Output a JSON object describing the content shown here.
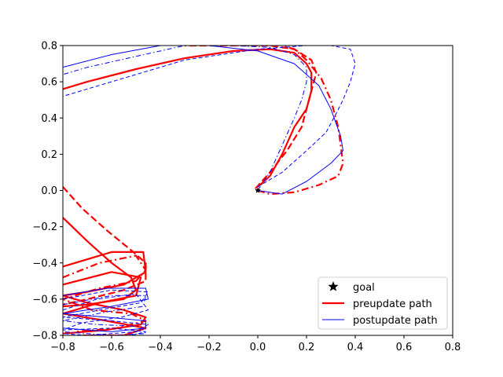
{
  "chart_data": {
    "type": "line",
    "title": "",
    "xlabel": "",
    "ylabel": "",
    "xlim": [
      -0.8,
      0.8
    ],
    "ylim": [
      -0.8,
      0.8
    ],
    "xticks": [
      -0.8,
      -0.6,
      -0.4,
      -0.2,
      0.0,
      0.2,
      0.4,
      0.6,
      0.8
    ],
    "yticks": [
      -0.8,
      -0.6,
      -0.4,
      -0.2,
      0.0,
      0.2,
      0.4,
      0.6,
      0.8
    ],
    "xtick_labels": [
      "−0.8",
      "−0.6",
      "−0.4",
      "−0.2",
      "0.0",
      "0.2",
      "0.4",
      "0.6",
      "0.8"
    ],
    "ytick_labels": [
      "−0.8",
      "−0.6",
      "−0.4",
      "−0.2",
      "0.0",
      "0.2",
      "0.4",
      "0.6",
      "0.8"
    ],
    "grid": false,
    "legend": {
      "position": "lower right",
      "entries": [
        {
          "label": "goal",
          "marker": "star",
          "color": "#000000"
        },
        {
          "label": "preupdate path",
          "style": "solid",
          "color": "#ff0000",
          "thick": true
        },
        {
          "label": "postupdate path",
          "style": "solid",
          "color": "#0000ff",
          "thick": false
        }
      ]
    },
    "goal": {
      "x": 0.0,
      "y": 0.0
    },
    "series": [
      {
        "group": "preupdate path",
        "color": "#ff0000",
        "style": "solid",
        "thick": true,
        "x": [
          0.0,
          0.05,
          0.1,
          0.15,
          0.2,
          0.22,
          0.22,
          0.2,
          0.15,
          0.05,
          -0.1,
          -0.3,
          -0.5,
          -0.7,
          -0.8
        ],
        "y": [
          0.02,
          0.08,
          0.2,
          0.35,
          0.45,
          0.55,
          0.65,
          0.7,
          0.76,
          0.78,
          0.77,
          0.73,
          0.67,
          0.6,
          0.56
        ]
      },
      {
        "group": "preupdate path",
        "color": "#ff0000",
        "style": "dashed",
        "thick": true,
        "x": [
          -0.01,
          0.05,
          0.12,
          0.18,
          0.2,
          0.22,
          0.24,
          0.22,
          0.15,
          0.05,
          -0.1,
          -0.3
        ],
        "y": [
          0.01,
          0.1,
          0.22,
          0.35,
          0.45,
          0.55,
          0.65,
          0.72,
          0.78,
          0.8,
          0.8,
          0.8
        ]
      },
      {
        "group": "preupdate path",
        "color": "#ff0000",
        "style": "dashdot",
        "thick": true,
        "x": [
          0.0,
          0.05,
          0.15,
          0.25,
          0.33,
          0.35,
          0.34,
          0.33,
          0.3,
          0.26,
          0.2,
          0.15,
          0.1
        ],
        "y": [
          0.0,
          -0.02,
          -0.01,
          0.03,
          0.08,
          0.15,
          0.25,
          0.35,
          0.5,
          0.62,
          0.72,
          0.78,
          0.8
        ]
      },
      {
        "group": "postupdate path",
        "color": "#0000ff",
        "style": "solid",
        "thick": false,
        "x": [
          0.0,
          0.1,
          0.2,
          0.3,
          0.35,
          0.34,
          0.3,
          0.25,
          0.15,
          0.0,
          -0.2,
          -0.4,
          -0.6,
          -0.8
        ],
        "y": [
          0.0,
          -0.02,
          0.05,
          0.15,
          0.22,
          0.3,
          0.45,
          0.58,
          0.7,
          0.77,
          0.8,
          0.8,
          0.75,
          0.68
        ]
      },
      {
        "group": "postupdate path",
        "color": "#0000ff",
        "style": "dashed",
        "thick": false,
        "x": [
          0.0,
          0.1,
          0.2,
          0.28,
          0.32,
          0.35,
          0.38,
          0.4,
          0.38,
          0.3,
          0.2,
          0.0,
          -0.3,
          -0.6,
          -0.8
        ],
        "y": [
          0.02,
          0.1,
          0.22,
          0.32,
          0.42,
          0.5,
          0.6,
          0.7,
          0.78,
          0.8,
          0.8,
          0.78,
          0.72,
          0.6,
          0.52
        ]
      },
      {
        "group": "postupdate path",
        "color": "#0000ff",
        "style": "dashdot",
        "thick": false,
        "x": [
          0.0,
          0.05,
          0.1,
          0.15,
          0.18,
          0.2,
          0.2,
          0.15,
          0.05,
          -0.1,
          -0.3,
          -0.5,
          -0.7,
          -0.8
        ],
        "y": [
          0.0,
          0.1,
          0.25,
          0.4,
          0.5,
          0.6,
          0.68,
          0.75,
          0.79,
          0.8,
          0.8,
          0.74,
          0.68,
          0.64
        ]
      },
      {
        "group": "preupdate path",
        "color": "#ff0000",
        "style": "dashed",
        "thick": true,
        "x": [
          -0.8,
          -0.72,
          -0.62,
          -0.52,
          -0.46,
          -0.46,
          -0.55,
          -0.7,
          -0.8
        ],
        "y": [
          0.02,
          -0.1,
          -0.22,
          -0.33,
          -0.4,
          -0.5,
          -0.55,
          -0.6,
          -0.63
        ]
      },
      {
        "group": "preupdate path",
        "color": "#ff0000",
        "style": "solid",
        "thick": true,
        "x": [
          -0.8,
          -0.7,
          -0.6,
          -0.52,
          -0.5,
          -0.55,
          -0.7,
          -0.8
        ],
        "y": [
          -0.15,
          -0.28,
          -0.4,
          -0.48,
          -0.55,
          -0.6,
          -0.63,
          -0.64
        ]
      },
      {
        "group": "preupdate path",
        "color": "#ff0000",
        "style": "solid",
        "thick": true,
        "x": [
          -0.8,
          -0.6,
          -0.47,
          -0.46,
          -0.55,
          -0.7,
          -0.8,
          -0.7,
          -0.55,
          -0.46,
          -0.48,
          -0.62,
          -0.8
        ],
        "y": [
          -0.42,
          -0.34,
          -0.34,
          -0.45,
          -0.52,
          -0.56,
          -0.58,
          -0.62,
          -0.66,
          -0.7,
          -0.74,
          -0.77,
          -0.79
        ]
      },
      {
        "group": "preupdate path",
        "color": "#ff0000",
        "style": "dashdot",
        "thick": true,
        "x": [
          -0.8,
          -0.65,
          -0.5,
          -0.46,
          -0.5,
          -0.65,
          -0.8,
          -0.68,
          -0.52,
          -0.46,
          -0.58,
          -0.75
        ],
        "y": [
          -0.48,
          -0.4,
          -0.36,
          -0.44,
          -0.5,
          -0.54,
          -0.6,
          -0.66,
          -0.68,
          -0.72,
          -0.76,
          -0.78
        ]
      },
      {
        "group": "preupdate path",
        "color": "#ff0000",
        "style": "solid",
        "thick": true,
        "x": [
          -0.8,
          -0.6,
          -0.48,
          -0.5,
          -0.65,
          -0.8,
          -0.62,
          -0.46,
          -0.55,
          -0.72
        ],
        "y": [
          -0.52,
          -0.45,
          -0.48,
          -0.58,
          -0.62,
          -0.68,
          -0.72,
          -0.76,
          -0.8,
          -0.8
        ]
      },
      {
        "group": "postupdate path",
        "color": "#0000ff",
        "style": "dashed",
        "thick": false,
        "x": [
          -0.8,
          -0.6,
          -0.45,
          -0.48,
          -0.65,
          -0.8,
          -0.6,
          -0.45,
          -0.5,
          -0.7,
          -0.8
        ],
        "y": [
          -0.6,
          -0.55,
          -0.56,
          -0.62,
          -0.66,
          -0.7,
          -0.72,
          -0.74,
          -0.78,
          -0.8,
          -0.79
        ]
      },
      {
        "group": "postupdate path",
        "color": "#0000ff",
        "style": "solid",
        "thick": false,
        "x": [
          -0.8,
          -0.62,
          -0.46,
          -0.45,
          -0.6,
          -0.8,
          -0.62,
          -0.46,
          -0.46,
          -0.6,
          -0.8
        ],
        "y": [
          -0.58,
          -0.54,
          -0.54,
          -0.6,
          -0.64,
          -0.68,
          -0.7,
          -0.72,
          -0.76,
          -0.78,
          -0.76
        ]
      },
      {
        "group": "postupdate path",
        "color": "#0000ff",
        "style": "dashdot",
        "thick": false,
        "x": [
          -0.8,
          -0.6,
          -0.46,
          -0.47,
          -0.62,
          -0.8,
          -0.66,
          -0.48,
          -0.46,
          -0.6,
          -0.8
        ],
        "y": [
          -0.63,
          -0.58,
          -0.58,
          -0.64,
          -0.67,
          -0.72,
          -0.74,
          -0.75,
          -0.79,
          -0.8,
          -0.78
        ]
      },
      {
        "group": "postupdate path",
        "color": "#0000ff",
        "style": "dashed",
        "thick": false,
        "x": [
          -0.8,
          -0.66,
          -0.5,
          -0.45,
          -0.56,
          -0.72,
          -0.8,
          -0.6,
          -0.46,
          -0.52,
          -0.7
        ],
        "y": [
          -0.66,
          -0.6,
          -0.57,
          -0.66,
          -0.7,
          -0.73,
          -0.77,
          -0.76,
          -0.78,
          -0.8,
          -0.8
        ]
      }
    ]
  }
}
